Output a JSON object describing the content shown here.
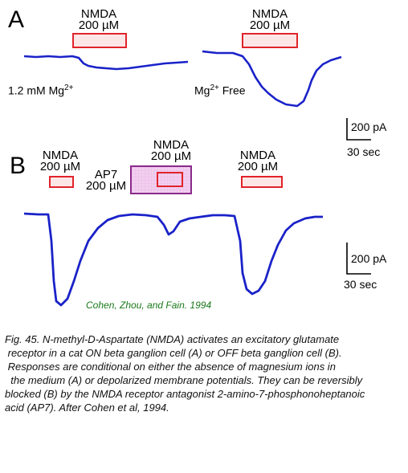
{
  "panel_a": {
    "letter": "A",
    "left": {
      "drug": "NMDA",
      "conc": "200 µM",
      "condition_prefix": "1.2 mM Mg",
      "condition_sup": "2+"
    },
    "right": {
      "drug": "NMDA",
      "conc": "200 µM",
      "condition_prefix": "Mg",
      "condition_sup": "2+",
      "condition_suffix": " Free"
    },
    "scale": {
      "current": "200 pA",
      "time": "30 sec"
    }
  },
  "panel_b": {
    "letter": "B",
    "app1": {
      "drug": "NMDA",
      "conc": "200 µM"
    },
    "app2": {
      "drug": "NMDA",
      "conc": "200 µM"
    },
    "antagonist": {
      "drug": "AP7",
      "conc": "200 µM"
    },
    "app3": {
      "drug": "NMDA",
      "conc": "200 µM"
    },
    "scale": {
      "current": "200 pA",
      "time": "30 sec"
    },
    "credit": "Cohen, Zhou, and Fain. 1994"
  },
  "caption": {
    "lines": [
      "Fig. 45. N-methyl-D-Aspartate (NMDA) activates an excitatory glutamate",
      " receptor in a cat ON beta ganglion cell (A) or OFF beta ganglion cell (B).",
      " Responses are conditional on either the absence of magnesium ions in",
      "  the medium (A) or depolarized membrane potentials. They can be reversibly",
      "blocked (B) by the NMDA receptor antagonist 2-amino-7-phosphonoheptanoic",
      "acid (AP7). After Cohen et al, 1994."
    ]
  },
  "colors": {
    "trace": "#1a22c8",
    "nmda_bar_stroke": "#e0242a",
    "nmda_bar_fill": "#fde6e6",
    "ap7_bar_stroke": "#8a2a8a",
    "ap7_bar_fill": "#f2cff0",
    "credit": "#1a7a1a"
  }
}
